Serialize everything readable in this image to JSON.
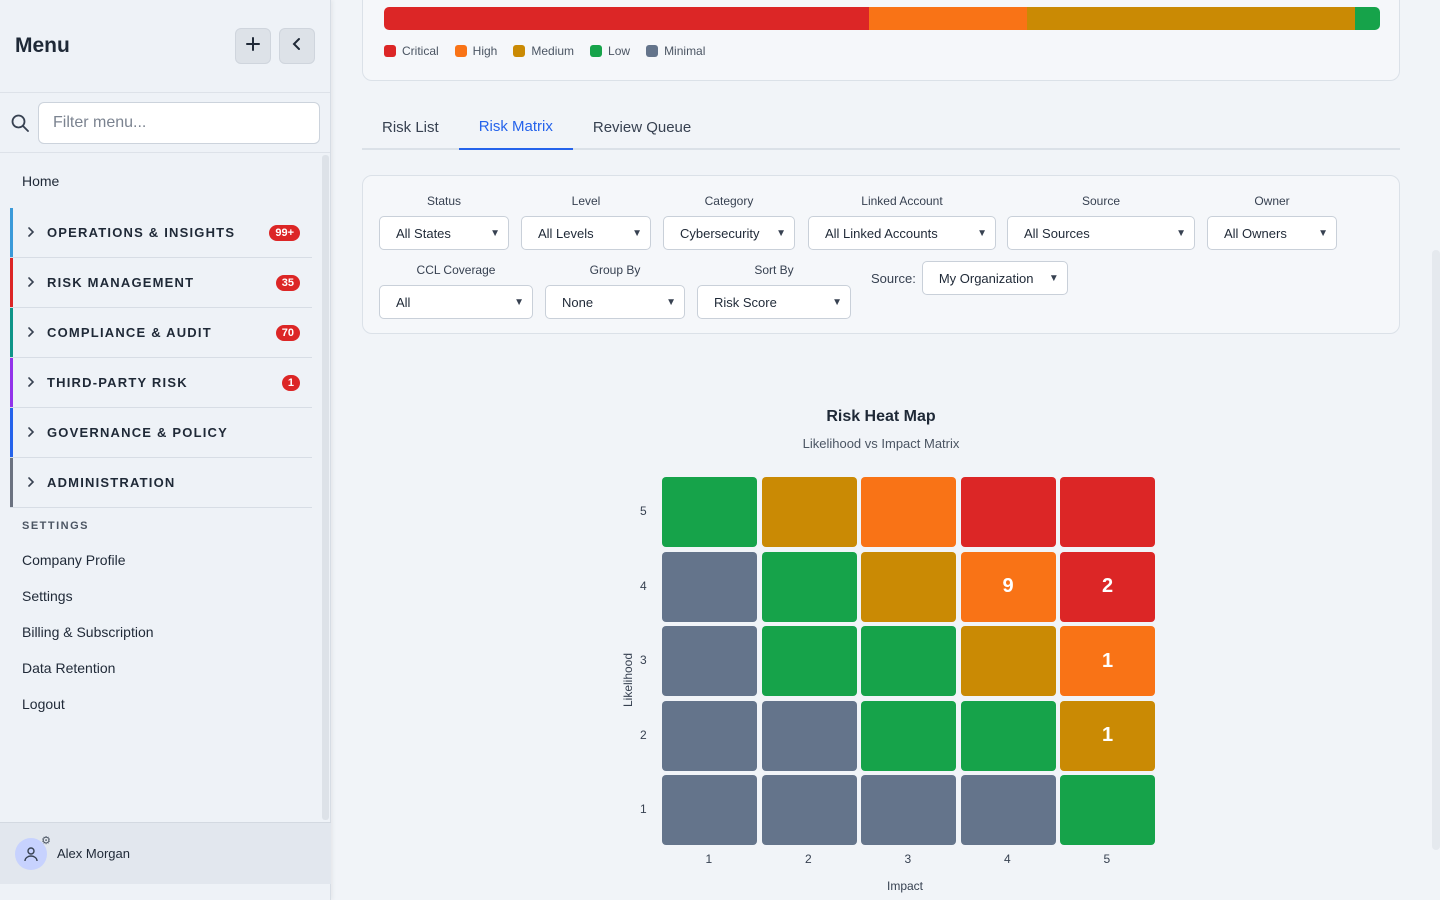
{
  "sidebar": {
    "title": "Menu",
    "add_icon": "plus-icon",
    "collapse_icon": "chevron-left-icon",
    "filter_placeholder": "Filter menu...",
    "home": "Home",
    "groups": [
      {
        "label": "OPERATIONS & INSIGHTS",
        "badge": "99+",
        "color": "#3b9ad9"
      },
      {
        "label": "RISK MANAGEMENT",
        "badge": "35",
        "color": "#dc2626"
      },
      {
        "label": "COMPLIANCE & AUDIT",
        "badge": "70",
        "color": "#0f9488"
      },
      {
        "label": "THIRD-PARTY RISK",
        "badge": "1",
        "color": "#9333ea"
      },
      {
        "label": "GOVERNANCE & POLICY",
        "badge": "",
        "color": "#2563eb"
      },
      {
        "label": "ADMINISTRATION",
        "badge": "",
        "color": "#6b7280"
      }
    ],
    "settings_heading": "SETTINGS",
    "settings_items": [
      "Company Profile",
      "Settings",
      "Billing & Subscription",
      "Data Retention",
      "Logout"
    ],
    "user_name": "Alex Morgan"
  },
  "distribution": {
    "segments": [
      {
        "name": "Critical",
        "fraction": 0.487,
        "color": "#dc2626"
      },
      {
        "name": "High",
        "fraction": 0.159,
        "color": "#f97316"
      },
      {
        "name": "Medium",
        "fraction": 0.329,
        "color": "#ca8a04"
      },
      {
        "name": "Low",
        "fraction": 0.025,
        "color": "#16a34a"
      },
      {
        "name": "Minimal",
        "fraction": 0,
        "color": "#64748b"
      }
    ]
  },
  "tabs": [
    {
      "label": "Risk List",
      "active": false
    },
    {
      "label": "Risk Matrix",
      "active": true
    },
    {
      "label": "Review Queue",
      "active": false
    }
  ],
  "filters": {
    "status": {
      "label": "Status",
      "value": "All States"
    },
    "level": {
      "label": "Level",
      "value": "All Levels"
    },
    "category": {
      "label": "Category",
      "value": "Cybersecurity"
    },
    "linked_account": {
      "label": "Linked Account",
      "value": "All Linked Accounts"
    },
    "source": {
      "label": "Source",
      "value": "All Sources"
    },
    "owner": {
      "label": "Owner",
      "value": "All Owners"
    },
    "ccl_coverage": {
      "label": "CCL Coverage",
      "value": "All"
    },
    "group_by": {
      "label": "Group By",
      "value": "None"
    },
    "sort_by": {
      "label": "Sort By",
      "value": "Risk Score"
    },
    "source_scope": {
      "label": "Source:",
      "value": "My Organization"
    }
  },
  "chart_data": {
    "type": "heatmap",
    "title": "Risk Heat Map",
    "subtitle": "Likelihood vs Impact Matrix",
    "xlabel": "Impact",
    "ylabel": "Likelihood",
    "x_ticks": [
      "1",
      "2",
      "3",
      "4",
      "5"
    ],
    "y_ticks": [
      "5",
      "4",
      "3",
      "2",
      "1"
    ],
    "level_colors": {
      "critical": "#dc2626",
      "high": "#f97316",
      "medium": "#ca8a04",
      "low": "#16a34a",
      "minimal": "#64748b"
    },
    "rows": [
      {
        "likelihood": 5,
        "levels": [
          "low",
          "medium",
          "high",
          "critical",
          "critical"
        ],
        "counts": [
          "",
          "",
          "",
          "",
          ""
        ]
      },
      {
        "likelihood": 4,
        "levels": [
          "minimal",
          "low",
          "medium",
          "high",
          "critical"
        ],
        "counts": [
          "",
          "",
          "",
          "9",
          "2"
        ]
      },
      {
        "likelihood": 3,
        "levels": [
          "minimal",
          "low",
          "low",
          "medium",
          "high"
        ],
        "counts": [
          "",
          "",
          "",
          "",
          "1"
        ]
      },
      {
        "likelihood": 2,
        "levels": [
          "minimal",
          "minimal",
          "low",
          "low",
          "medium"
        ],
        "counts": [
          "",
          "",
          "",
          "",
          "1"
        ]
      },
      {
        "likelihood": 1,
        "levels": [
          "minimal",
          "minimal",
          "minimal",
          "minimal",
          "low"
        ],
        "counts": [
          "",
          "",
          "",
          "",
          ""
        ]
      }
    ]
  }
}
